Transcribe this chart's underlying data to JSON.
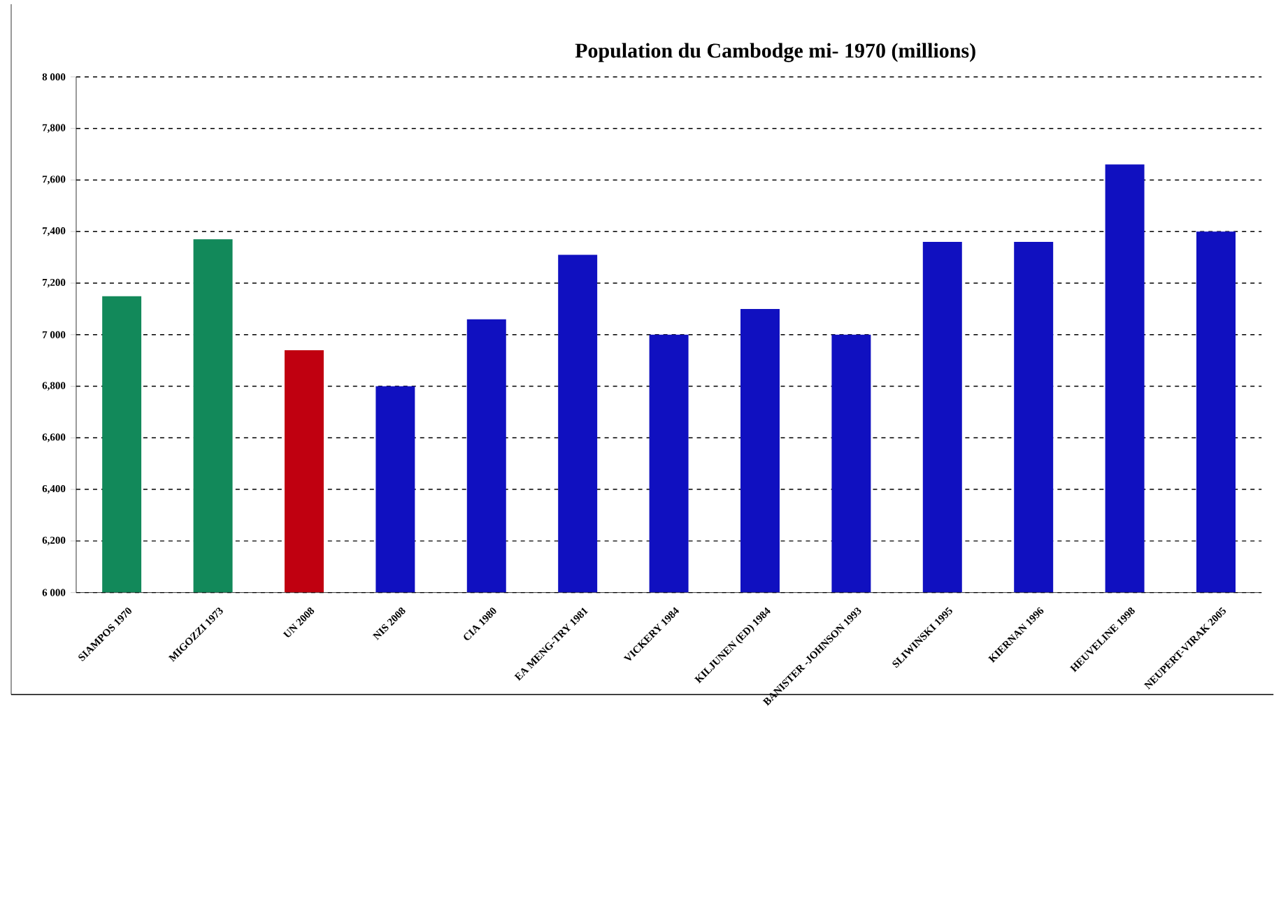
{
  "chart_data": {
    "type": "bar",
    "title": "**Population du Cambodge mi- 1970 (millions)**",
    "categories": [
      "SIAMPOS 1970",
      "MIGOZZI 1973",
      "UN 2008",
      "NIS 2008",
      "CIA 1980",
      "EA MENG-TRY 1981",
      "VICKERY 1984",
      "KILJUNEN (ED) 1984",
      "BANISTER -JOHNSON 1993",
      "SLIWINSKI 1995",
      "KIERNAN 1996",
      "HEUVELINE 1998",
      "NEUPERT-VIRAK 2005"
    ],
    "values": [
      7150,
      7370,
      6940,
      6800,
      7060,
      7310,
      7000,
      7100,
      7000,
      7360,
      7360,
      7660,
      7400
    ],
    "colors": [
      "#12895a",
      "#12895a",
      "#c00010",
      "#1010c0",
      "#1010c0",
      "#1010c0",
      "#1010c0",
      "#1010c0",
      "#1010c0",
      "#1010c0",
      "#1010c0",
      "#1010c0",
      "#1010c0"
    ],
    "ylim": [
      6000,
      8000
    ],
    "yticks": [
      {
        "value": 6000,
        "label": "6 000"
      },
      {
        "value": 6200,
        "label": "6,200"
      },
      {
        "value": 6400,
        "label": "6,400"
      },
      {
        "value": 6600,
        "label": "6,600"
      },
      {
        "value": 6800,
        "label": "6,800"
      },
      {
        "value": 7000,
        "label": "7 000"
      },
      {
        "value": 7200,
        "label": "7,200"
      },
      {
        "value": 7400,
        "label": "7,400"
      },
      {
        "value": 7600,
        "label": "7,600"
      },
      {
        "value": 7800,
        "label": "7,800"
      },
      {
        "value": 8000,
        "label": "8 000"
      }
    ],
    "grid": "y"
  }
}
